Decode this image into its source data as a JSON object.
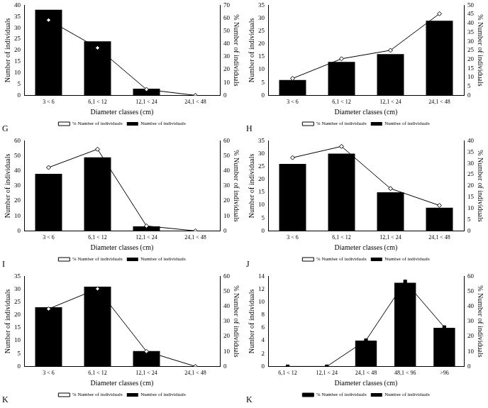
{
  "chart_data": [
    {
      "type": "bar",
      "title": "G",
      "categories": [
        "3 < 6",
        "6,1 < 12",
        "12,1 < 24",
        "24,1 < 48"
      ],
      "series": [
        {
          "name": "Number of individuals",
          "type": "bar",
          "color": "#000000",
          "values": [
            38,
            24,
            3,
            0
          ]
        },
        {
          "name": "% Number of individuals",
          "type": "line",
          "color": "#000000",
          "marker": "diamond",
          "axis": "y2",
          "values": [
            58.5,
            36.9,
            4.6,
            0
          ]
        }
      ],
      "xlabel": "Diameter classes (cm)",
      "ylabel": "Number of individuals",
      "y2label": "% Number of individuals",
      "ylim": [
        0,
        40
      ],
      "yticks": [
        0,
        5,
        10,
        15,
        20,
        25,
        30,
        35,
        40
      ],
      "y2lim": [
        0,
        70
      ],
      "y2ticks": [
        0,
        10,
        20,
        30,
        40,
        50,
        60,
        70
      ],
      "grid": false,
      "legend": "bottom"
    },
    {
      "type": "bar",
      "title": "H",
      "categories": [
        "3 < 6",
        "6,1 < 12",
        "12,1 < 24",
        "24,1 < 48"
      ],
      "series": [
        {
          "name": "Number of individuals",
          "type": "bar",
          "color": "#000000",
          "values": [
            6,
            13,
            16,
            29
          ]
        },
        {
          "name": "% Number of individuals",
          "type": "line",
          "color": "#000000",
          "marker": "diamond",
          "axis": "y2",
          "values": [
            9.4,
            20.3,
            25,
            45.3
          ]
        }
      ],
      "xlabel": "Diameter classes (cm)",
      "ylabel": "Number of individuals",
      "y2label": "% Number of individuals",
      "ylim": [
        0,
        35
      ],
      "yticks": [
        0,
        5,
        10,
        15,
        20,
        25,
        30,
        35
      ],
      "y2lim": [
        0,
        50
      ],
      "y2ticks": [
        0,
        5,
        10,
        15,
        20,
        25,
        30,
        35,
        40,
        45,
        50
      ],
      "grid": false,
      "legend": "bottom"
    },
    {
      "type": "bar",
      "title": "I",
      "categories": [
        "3 < 6",
        "6,1 < 12",
        "12,1 < 24",
        "24,1 < 48"
      ],
      "series": [
        {
          "name": "Number of individuals",
          "type": "bar",
          "color": "#000000",
          "values": [
            38,
            49,
            3,
            0
          ]
        },
        {
          "name": "% Number of individuals",
          "type": "line",
          "color": "#000000",
          "marker": "diamond",
          "axis": "y2",
          "values": [
            42.2,
            54.4,
            3.3,
            0
          ]
        }
      ],
      "xlabel": "Diameter classes (cm)",
      "ylabel": "Number of individuals",
      "y2label": "% Number of individuals",
      "ylim": [
        0,
        60
      ],
      "yticks": [
        0,
        10,
        20,
        30,
        40,
        50,
        60
      ],
      "y2lim": [
        0,
        60
      ],
      "y2ticks": [
        0,
        10,
        20,
        30,
        40,
        50,
        60
      ],
      "grid": false,
      "legend": "bottom"
    },
    {
      "type": "bar",
      "title": "J",
      "categories": [
        "3 < 6",
        "6,1 < 12",
        "12,1 < 24",
        "24,1 < 48"
      ],
      "series": [
        {
          "name": "Number of individuals",
          "type": "bar",
          "color": "#000000",
          "values": [
            26,
            30,
            15,
            9
          ]
        },
        {
          "name": "% Number of individuals",
          "type": "line",
          "color": "#000000",
          "marker": "diamond",
          "axis": "y2",
          "values": [
            32.5,
            37.5,
            18.8,
            11.3
          ]
        }
      ],
      "xlabel": "Diameter classes (cm)",
      "ylabel": "Number of individuals",
      "y2label": "% Number of individuals",
      "ylim": [
        0,
        35
      ],
      "yticks": [
        0,
        5,
        10,
        15,
        20,
        25,
        30,
        35
      ],
      "y2lim": [
        0,
        40
      ],
      "y2ticks": [
        0,
        5,
        10,
        15,
        20,
        25,
        30,
        35,
        40
      ],
      "grid": false,
      "legend": "bottom"
    },
    {
      "type": "bar",
      "title": "K",
      "categories": [
        "3 < 6",
        "6,1 < 12",
        "12,1 < 24",
        "24,1 < 48"
      ],
      "series": [
        {
          "name": "Number of individuals",
          "type": "bar",
          "color": "#000000",
          "values": [
            23,
            31,
            6,
            0
          ]
        },
        {
          "name": "% Number of individuals",
          "type": "line",
          "color": "#000000",
          "marker": "diamond",
          "axis": "y2",
          "values": [
            38.3,
            51.7,
            10,
            0
          ]
        }
      ],
      "xlabel": "Diameter classes (cm)",
      "ylabel": "Number of individuals",
      "y2label": "% Number of individuals",
      "ylim": [
        0,
        35
      ],
      "yticks": [
        0,
        5,
        10,
        15,
        20,
        25,
        30,
        35
      ],
      "y2lim": [
        0,
        60
      ],
      "y2ticks": [
        0,
        10,
        20,
        30,
        40,
        50,
        60
      ],
      "grid": false,
      "legend": "bottom"
    },
    {
      "type": "bar",
      "title": "K",
      "categories": [
        "6,1 < 12",
        "12,1 < 24",
        "24,1 < 48",
        "48,1 < 96",
        ">96"
      ],
      "series": [
        {
          "name": "Number of individuals",
          "type": "bar",
          "color": "#000000",
          "values": [
            0,
            0,
            4,
            13,
            6
          ]
        },
        {
          "name": "% Number of individuals",
          "type": "line",
          "color": "#000000",
          "marker": "square",
          "axis": "y2",
          "values": [
            0,
            0,
            17.4,
            56.5,
            26.1
          ]
        }
      ],
      "xlabel": "Diameter classes (cm)",
      "ylabel": "Number of individuals",
      "y2label": "% Number of individuals",
      "ylim": [
        0,
        14
      ],
      "yticks": [
        0,
        2,
        4,
        6,
        8,
        10,
        12,
        14
      ],
      "y2lim": [
        0,
        60
      ],
      "y2ticks": [
        0,
        10,
        20,
        30,
        40,
        50,
        60
      ],
      "grid": false,
      "legend": "bottom"
    }
  ]
}
